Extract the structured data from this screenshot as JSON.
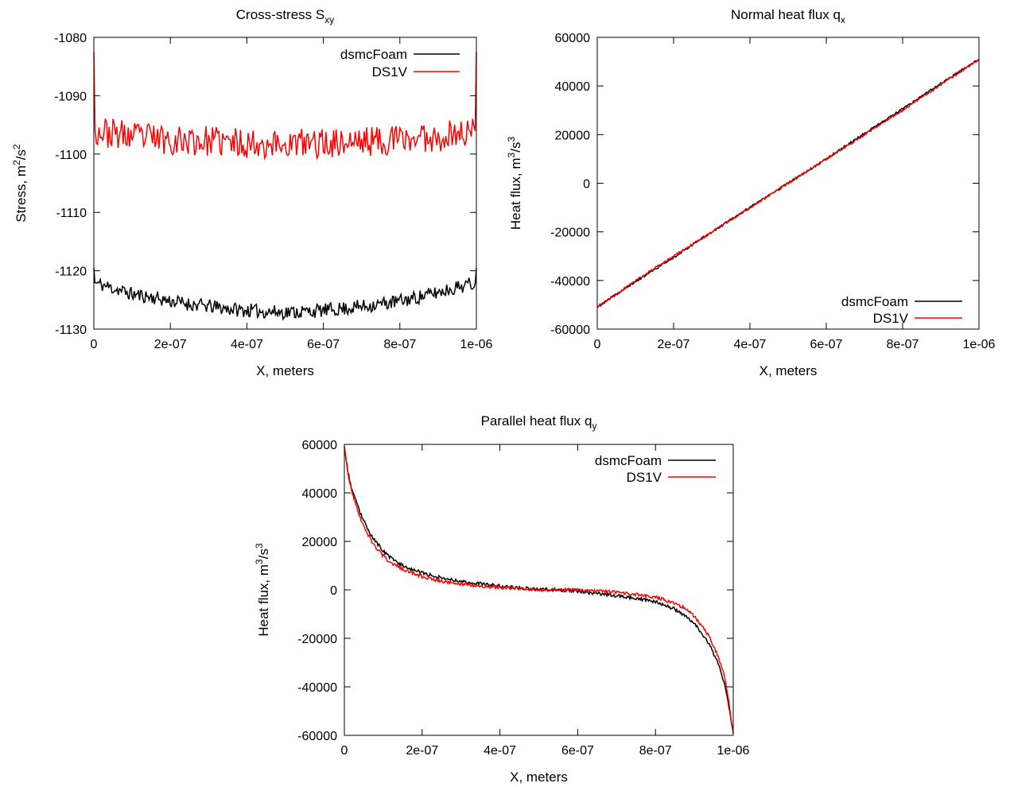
{
  "chart_data": [
    {
      "id": "sxy",
      "type": "line",
      "title": {
        "main": "Cross-stress S",
        "sub": "xy"
      },
      "xlabel": "X, meters",
      "ylabel": {
        "main": "Stress, m",
        "sup1": "2",
        "mid": "/s",
        "sup2": "2"
      },
      "xlim": [
        0,
        1e-06
      ],
      "ylim": [
        -1130,
        -1080
      ],
      "xticks": [
        0,
        2e-07,
        4e-07,
        6e-07,
        8e-07,
        1e-06
      ],
      "xtick_labels": [
        "0",
        "2e-07",
        "4e-07",
        "6e-07",
        "8e-07",
        "1e-06"
      ],
      "yticks": [
        -1130,
        -1120,
        -1110,
        -1100,
        -1090,
        -1080
      ],
      "ytick_labels": [
        "-1130",
        "-1120",
        "-1110",
        "-1100",
        "-1090",
        "-1080"
      ],
      "legend": "top-right",
      "series": [
        {
          "name": "dsmcFoam",
          "color": "#000000",
          "x": [
            0,
            5e-08,
            1e-07,
            1.5e-07,
            2e-07,
            2.5e-07,
            3e-07,
            3.5e-07,
            4e-07,
            4.5e-07,
            5e-07,
            5.5e-07,
            6e-07,
            6.5e-07,
            7e-07,
            7.5e-07,
            8e-07,
            8.5e-07,
            9e-07,
            9.5e-07,
            1e-06
          ],
          "y": [
            -1122,
            -1123,
            -1124,
            -1124.5,
            -1125.2,
            -1125.7,
            -1126.1,
            -1126.5,
            -1126.8,
            -1127,
            -1127.1,
            -1127,
            -1126.8,
            -1126.5,
            -1126.1,
            -1125.7,
            -1125.2,
            -1124.5,
            -1123.7,
            -1122.8,
            -1122
          ]
        },
        {
          "name": "DS1V",
          "color": "#ff0000",
          "x": [
            0,
            5e-08,
            1e-07,
            1.5e-07,
            2e-07,
            2.5e-07,
            3e-07,
            3.5e-07,
            4e-07,
            4.5e-07,
            5e-07,
            5.5e-07,
            6e-07,
            6.5e-07,
            7e-07,
            7.5e-07,
            8e-07,
            8.5e-07,
            9e-07,
            9.5e-07,
            1e-06
          ],
          "y": [
            -1096,
            -1096.5,
            -1097,
            -1097.2,
            -1097.5,
            -1097.7,
            -1097.8,
            -1098,
            -1098.1,
            -1098.2,
            -1098.3,
            -1098.2,
            -1098.1,
            -1098,
            -1097.8,
            -1097.7,
            -1097.5,
            -1097.2,
            -1097,
            -1096.5,
            -1096
          ]
        }
      ]
    },
    {
      "id": "qx",
      "type": "line",
      "title": {
        "main": "Normal heat flux q",
        "sub": "x"
      },
      "xlabel": "X, meters",
      "ylabel": {
        "main": "Heat flux, m",
        "sup1": "3",
        "mid": "/s",
        "sup2": "3"
      },
      "xlim": [
        0,
        1e-06
      ],
      "ylim": [
        -60000,
        60000
      ],
      "xticks": [
        0,
        2e-07,
        4e-07,
        6e-07,
        8e-07,
        1e-06
      ],
      "xtick_labels": [
        "0",
        "2e-07",
        "4e-07",
        "6e-07",
        "8e-07",
        "1e-06"
      ],
      "yticks": [
        -60000,
        -40000,
        -20000,
        0,
        20000,
        40000,
        60000
      ],
      "ytick_labels": [
        "-60000",
        "-40000",
        "-20000",
        "0",
        "20000",
        "40000",
        "60000"
      ],
      "legend": "bottom-right",
      "series": [
        {
          "name": "dsmcFoam",
          "color": "#000000",
          "x": [
            0,
            1e-07,
            2e-07,
            3e-07,
            4e-07,
            5e-07,
            6e-07,
            7e-07,
            8e-07,
            9e-07,
            1e-06
          ],
          "y": [
            -51000,
            -40500,
            -30500,
            -20000,
            -10000,
            0,
            10000,
            20500,
            30500,
            41000,
            51000
          ]
        },
        {
          "name": "DS1V",
          "color": "#ff0000",
          "x": [
            0,
            1e-07,
            2e-07,
            3e-07,
            4e-07,
            5e-07,
            6e-07,
            7e-07,
            8e-07,
            9e-07,
            1e-06
          ],
          "y": [
            -51000,
            -40000,
            -30000,
            -20000,
            -10000,
            0,
            10000,
            20000,
            30000,
            40500,
            51000
          ]
        }
      ]
    },
    {
      "id": "qy",
      "type": "line",
      "title": {
        "main": "Parallel heat flux q",
        "sub": "y"
      },
      "xlabel": "X, meters",
      "ylabel": {
        "main": "Heat flux, m",
        "sup1": "3",
        "mid": "/s",
        "sup2": "3"
      },
      "xlim": [
        0,
        1e-06
      ],
      "ylim": [
        -60000,
        60000
      ],
      "xticks": [
        0,
        2e-07,
        4e-07,
        6e-07,
        8e-07,
        1e-06
      ],
      "xtick_labels": [
        "0",
        "2e-07",
        "4e-07",
        "6e-07",
        "8e-07",
        "1e-06"
      ],
      "yticks": [
        -60000,
        -40000,
        -20000,
        0,
        20000,
        40000,
        60000
      ],
      "ytick_labels": [
        "-60000",
        "-40000",
        "-20000",
        "0",
        "20000",
        "40000",
        "60000"
      ],
      "legend": "top-right",
      "series": [
        {
          "name": "dsmcFoam",
          "color": "#000000",
          "x": [
            0,
            1e-08,
            2e-08,
            4e-08,
            6e-08,
            8e-08,
            1e-07,
            1.2e-07,
            1.5e-07,
            2e-07,
            2.5e-07,
            3e-07,
            3.5e-07,
            4e-07,
            4.5e-07,
            5e-07,
            5.5e-07,
            6e-07,
            6.5e-07,
            7e-07,
            7.5e-07,
            8e-07,
            8.5e-07,
            8.8e-07,
            9e-07,
            9.2e-07,
            9.4e-07,
            9.6e-07,
            9.8e-07,
            1e-06
          ],
          "y": [
            59000,
            48000,
            41000,
            32000,
            25000,
            20000,
            16000,
            13000,
            10000,
            7000,
            5000,
            3500,
            2500,
            1500,
            800,
            300,
            0,
            -500,
            -1500,
            -2500,
            -3500,
            -5000,
            -8000,
            -11000,
            -14000,
            -18000,
            -23000,
            -30000,
            -40000,
            -59000
          ]
        },
        {
          "name": "DS1V",
          "color": "#ff0000",
          "x": [
            0,
            1e-08,
            2e-08,
            4e-08,
            6e-08,
            8e-08,
            1e-07,
            1.2e-07,
            1.5e-07,
            2e-07,
            2.5e-07,
            3e-07,
            3.5e-07,
            4e-07,
            4.5e-07,
            5e-07,
            5.5e-07,
            6e-07,
            6.5e-07,
            7e-07,
            7.5e-07,
            8e-07,
            8.5e-07,
            8.8e-07,
            9e-07,
            9.2e-07,
            9.4e-07,
            9.6e-07,
            9.8e-07,
            1e-06
          ],
          "y": [
            59000,
            47000,
            40000,
            30000,
            23000,
            17500,
            14000,
            11000,
            8500,
            5500,
            3500,
            2500,
            1500,
            1000,
            500,
            0,
            0,
            0,
            -500,
            -1000,
            -2000,
            -3000,
            -5500,
            -8000,
            -11000,
            -15000,
            -20000,
            -27000,
            -37000,
            -59000
          ]
        }
      ]
    }
  ]
}
